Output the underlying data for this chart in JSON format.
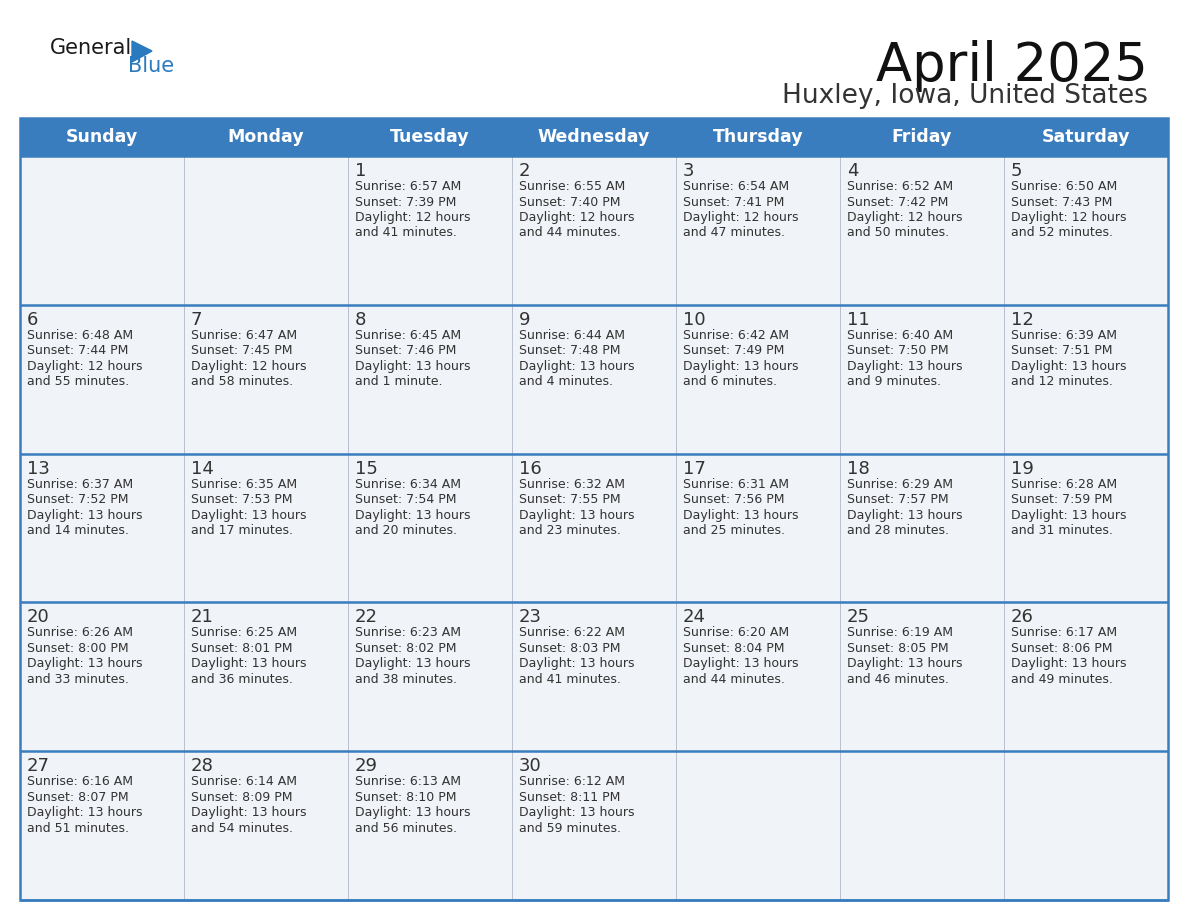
{
  "title": "April 2025",
  "subtitle": "Huxley, Iowa, United States",
  "header_bg": "#3a7dbf",
  "header_text_color": "#ffffff",
  "cell_bg": "#f0f3f7",
  "day_names": [
    "Sunday",
    "Monday",
    "Tuesday",
    "Wednesday",
    "Thursday",
    "Friday",
    "Saturday"
  ],
  "grid_line_color": "#3a7dbf",
  "text_color": "#333333",
  "logo_general_color": "#1a1a1a",
  "logo_blue_color": "#2a7abf",
  "weeks": [
    {
      "days": [
        {
          "date": "",
          "info": ""
        },
        {
          "date": "",
          "info": ""
        },
        {
          "date": "1",
          "info": "Sunrise: 6:57 AM\nSunset: 7:39 PM\nDaylight: 12 hours\nand 41 minutes."
        },
        {
          "date": "2",
          "info": "Sunrise: 6:55 AM\nSunset: 7:40 PM\nDaylight: 12 hours\nand 44 minutes."
        },
        {
          "date": "3",
          "info": "Sunrise: 6:54 AM\nSunset: 7:41 PM\nDaylight: 12 hours\nand 47 minutes."
        },
        {
          "date": "4",
          "info": "Sunrise: 6:52 AM\nSunset: 7:42 PM\nDaylight: 12 hours\nand 50 minutes."
        },
        {
          "date": "5",
          "info": "Sunrise: 6:50 AM\nSunset: 7:43 PM\nDaylight: 12 hours\nand 52 minutes."
        }
      ]
    },
    {
      "days": [
        {
          "date": "6",
          "info": "Sunrise: 6:48 AM\nSunset: 7:44 PM\nDaylight: 12 hours\nand 55 minutes."
        },
        {
          "date": "7",
          "info": "Sunrise: 6:47 AM\nSunset: 7:45 PM\nDaylight: 12 hours\nand 58 minutes."
        },
        {
          "date": "8",
          "info": "Sunrise: 6:45 AM\nSunset: 7:46 PM\nDaylight: 13 hours\nand 1 minute."
        },
        {
          "date": "9",
          "info": "Sunrise: 6:44 AM\nSunset: 7:48 PM\nDaylight: 13 hours\nand 4 minutes."
        },
        {
          "date": "10",
          "info": "Sunrise: 6:42 AM\nSunset: 7:49 PM\nDaylight: 13 hours\nand 6 minutes."
        },
        {
          "date": "11",
          "info": "Sunrise: 6:40 AM\nSunset: 7:50 PM\nDaylight: 13 hours\nand 9 minutes."
        },
        {
          "date": "12",
          "info": "Sunrise: 6:39 AM\nSunset: 7:51 PM\nDaylight: 13 hours\nand 12 minutes."
        }
      ]
    },
    {
      "days": [
        {
          "date": "13",
          "info": "Sunrise: 6:37 AM\nSunset: 7:52 PM\nDaylight: 13 hours\nand 14 minutes."
        },
        {
          "date": "14",
          "info": "Sunrise: 6:35 AM\nSunset: 7:53 PM\nDaylight: 13 hours\nand 17 minutes."
        },
        {
          "date": "15",
          "info": "Sunrise: 6:34 AM\nSunset: 7:54 PM\nDaylight: 13 hours\nand 20 minutes."
        },
        {
          "date": "16",
          "info": "Sunrise: 6:32 AM\nSunset: 7:55 PM\nDaylight: 13 hours\nand 23 minutes."
        },
        {
          "date": "17",
          "info": "Sunrise: 6:31 AM\nSunset: 7:56 PM\nDaylight: 13 hours\nand 25 minutes."
        },
        {
          "date": "18",
          "info": "Sunrise: 6:29 AM\nSunset: 7:57 PM\nDaylight: 13 hours\nand 28 minutes."
        },
        {
          "date": "19",
          "info": "Sunrise: 6:28 AM\nSunset: 7:59 PM\nDaylight: 13 hours\nand 31 minutes."
        }
      ]
    },
    {
      "days": [
        {
          "date": "20",
          "info": "Sunrise: 6:26 AM\nSunset: 8:00 PM\nDaylight: 13 hours\nand 33 minutes."
        },
        {
          "date": "21",
          "info": "Sunrise: 6:25 AM\nSunset: 8:01 PM\nDaylight: 13 hours\nand 36 minutes."
        },
        {
          "date": "22",
          "info": "Sunrise: 6:23 AM\nSunset: 8:02 PM\nDaylight: 13 hours\nand 38 minutes."
        },
        {
          "date": "23",
          "info": "Sunrise: 6:22 AM\nSunset: 8:03 PM\nDaylight: 13 hours\nand 41 minutes."
        },
        {
          "date": "24",
          "info": "Sunrise: 6:20 AM\nSunset: 8:04 PM\nDaylight: 13 hours\nand 44 minutes."
        },
        {
          "date": "25",
          "info": "Sunrise: 6:19 AM\nSunset: 8:05 PM\nDaylight: 13 hours\nand 46 minutes."
        },
        {
          "date": "26",
          "info": "Sunrise: 6:17 AM\nSunset: 8:06 PM\nDaylight: 13 hours\nand 49 minutes."
        }
      ]
    },
    {
      "days": [
        {
          "date": "27",
          "info": "Sunrise: 6:16 AM\nSunset: 8:07 PM\nDaylight: 13 hours\nand 51 minutes."
        },
        {
          "date": "28",
          "info": "Sunrise: 6:14 AM\nSunset: 8:09 PM\nDaylight: 13 hours\nand 54 minutes."
        },
        {
          "date": "29",
          "info": "Sunrise: 6:13 AM\nSunset: 8:10 PM\nDaylight: 13 hours\nand 56 minutes."
        },
        {
          "date": "30",
          "info": "Sunrise: 6:12 AM\nSunset: 8:11 PM\nDaylight: 13 hours\nand 59 minutes."
        },
        {
          "date": "",
          "info": ""
        },
        {
          "date": "",
          "info": ""
        },
        {
          "date": "",
          "info": ""
        }
      ]
    }
  ]
}
